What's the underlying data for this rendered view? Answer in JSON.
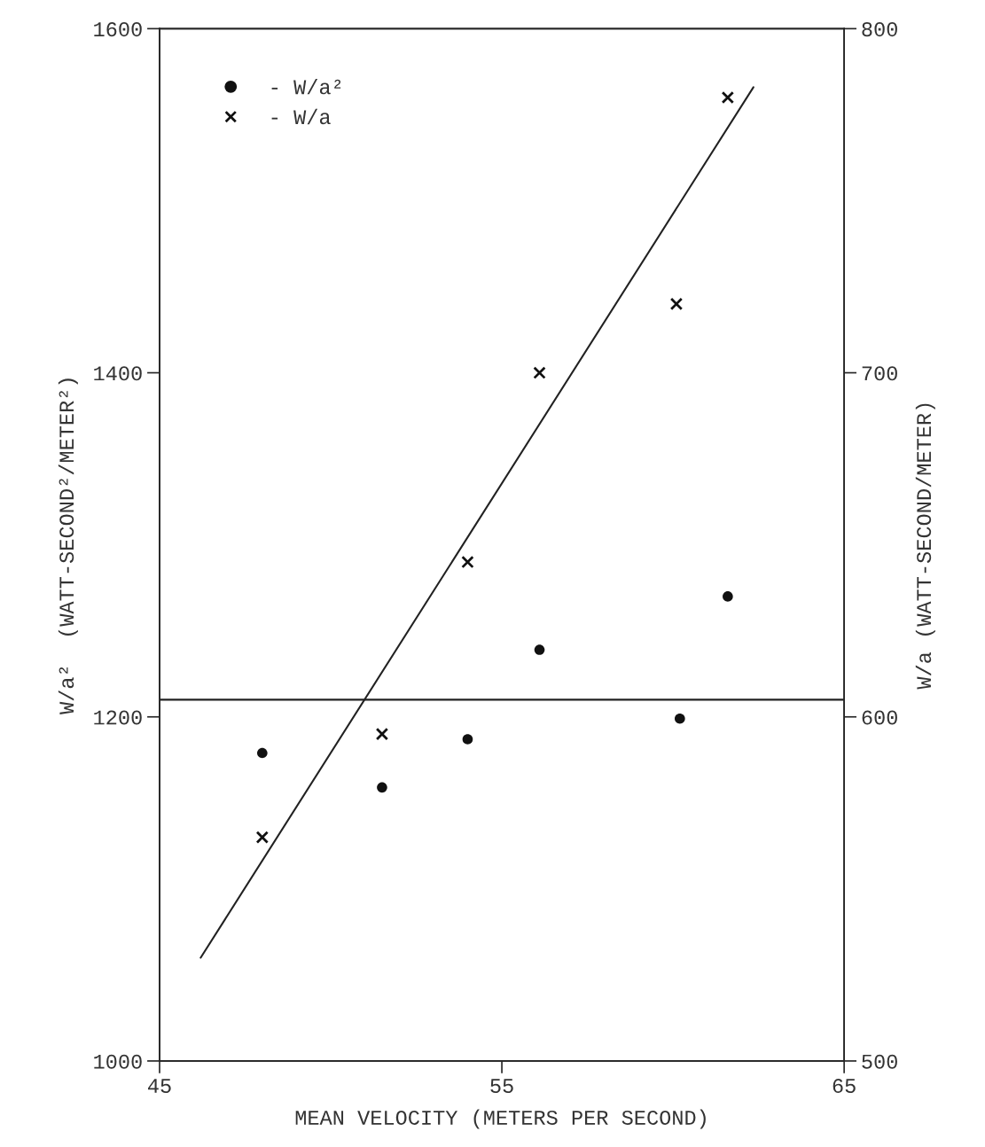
{
  "chart_data": {
    "type": "scatter",
    "xlabel": "MEAN VELOCITY (METERS PER SECOND)",
    "ylabel": "W/a²  (WATT-SECOND²/METER²)",
    "y2label": "W/a (WATT-SECOND/METER)",
    "xlim": [
      45,
      65
    ],
    "xticks": [
      45,
      55,
      65
    ],
    "ylim": [
      1000,
      1600
    ],
    "yticks": [
      1000,
      1200,
      1400,
      1600
    ],
    "y2lim": [
      500,
      800
    ],
    "y2ticks": [
      500,
      600,
      700,
      800
    ],
    "legend": "top left",
    "grid": false,
    "series": [
      {
        "name": "- W/a²",
        "marker": "circle",
        "color": "#111111",
        "x": [
          48,
          51.5,
          54,
          56.1,
          60.2,
          61.6
        ],
        "values": [
          1179,
          1159,
          1187,
          1239,
          1199,
          1270
        ]
      },
      {
        "name": "- W/a",
        "marker": "cross",
        "color": "#111111",
        "axis": "y2",
        "x": [
          48,
          51.5,
          54,
          56.1,
          60.1,
          61.6
        ],
        "values": [
          565,
          595,
          645,
          700,
          720,
          780
        ]
      },
      {
        "type": "line",
        "marker": "none",
        "line_style": "solid",
        "color": "#222222",
        "axis": "y2",
        "x": [
          46.2,
          62.35
        ],
        "values": [
          530,
          783
        ]
      }
    ],
    "ref_lines": [
      {
        "axis": "y",
        "value": 1210,
        "color": "#222222",
        "line_style": "solid"
      }
    ]
  }
}
